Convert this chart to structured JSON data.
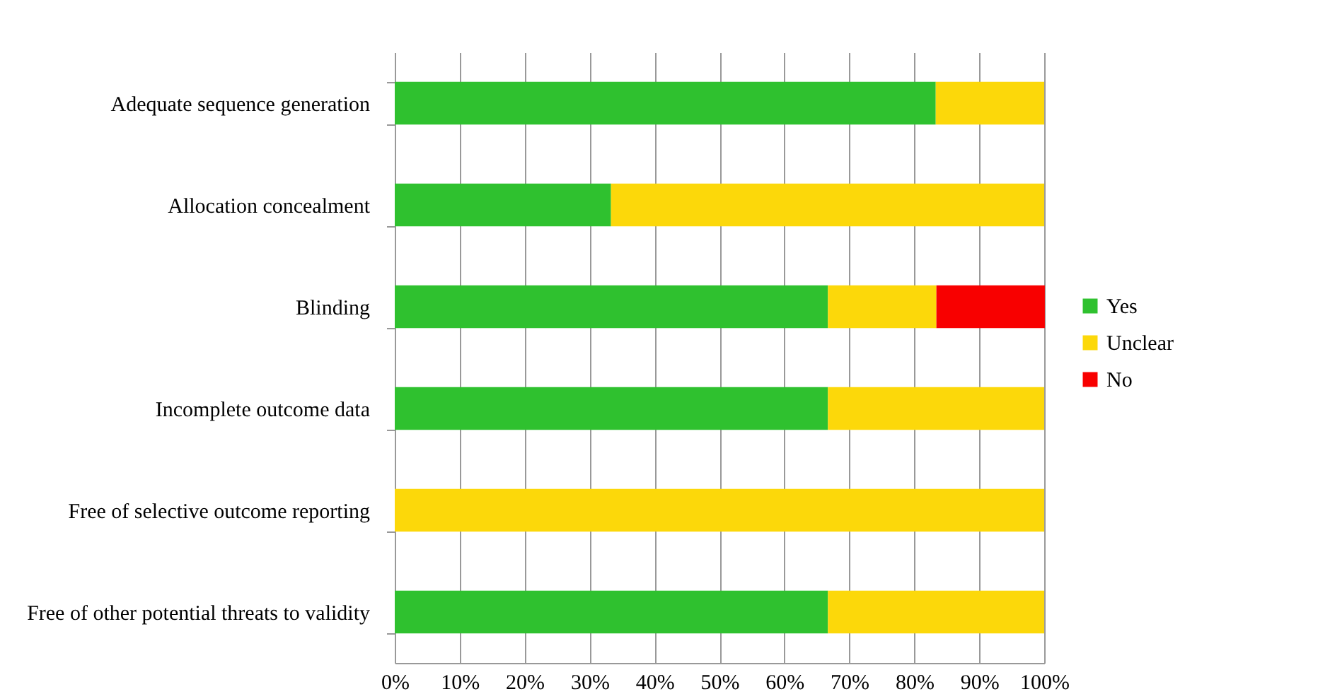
{
  "chart_data": {
    "type": "bar",
    "orientation": "horizontal",
    "stacked": true,
    "categories": [
      "Adequate sequence generation",
      "Allocation concealment",
      "Blinding",
      "Incomplete outcome data",
      "Free of selective outcome reporting",
      "Free of other potential threats to validity"
    ],
    "series": [
      {
        "name": "Yes",
        "color": "#2fc12f",
        "values": [
          83.3,
          33.3,
          66.7,
          66.7,
          0,
          66.7
        ]
      },
      {
        "name": "Unclear",
        "color": "#fcd80a",
        "values": [
          16.7,
          66.7,
          16.7,
          33.3,
          100,
          33.3
        ]
      },
      {
        "name": "No",
        "color": "#f80000",
        "values": [
          0,
          0,
          16.7,
          0,
          0,
          0
        ]
      }
    ],
    "xlim": [
      0,
      100
    ],
    "xticks": [
      {
        "value": 0,
        "label": "0%"
      },
      {
        "value": 10,
        "label": "10%"
      },
      {
        "value": 20,
        "label": "20%"
      },
      {
        "value": 30,
        "label": "30%"
      },
      {
        "value": 40,
        "label": "40%"
      },
      {
        "value": 50,
        "label": "50%"
      },
      {
        "value": 60,
        "label": "60%"
      },
      {
        "value": 70,
        "label": "70%"
      },
      {
        "value": 80,
        "label": "80%"
      },
      {
        "value": 90,
        "label": "90%"
      },
      {
        "value": 100,
        "label": "100%"
      }
    ],
    "grid": "x",
    "legend": "right"
  }
}
